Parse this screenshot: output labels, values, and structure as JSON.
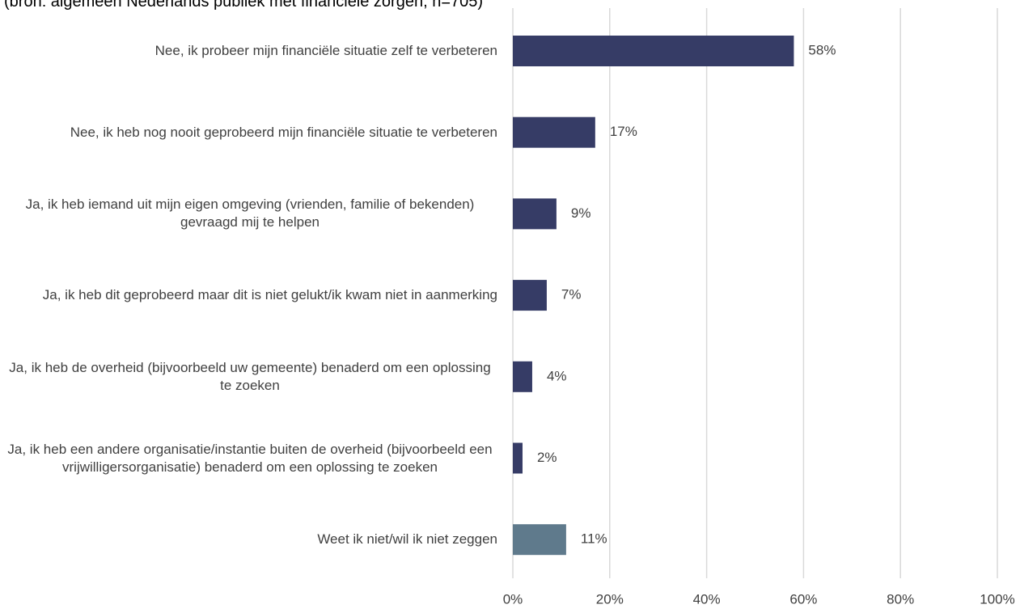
{
  "chart_data": {
    "type": "bar",
    "orientation": "horizontal",
    "subtitle": "(bron: algemeen Nederlands publiek met financiële zorgen, n=705)",
    "categories": [
      "Nee, ik probeer mijn financiële situatie zelf te verbeteren",
      "Nee, ik heb nog nooit geprobeerd mijn financiële situatie te verbeteren",
      "Ja, ik heb iemand uit mijn eigen omgeving (vrienden, familie of bekenden) gevraagd mij te helpen",
      "Ja, ik heb dit geprobeerd maar dit is niet gelukt/ik kwam niet in aanmerking",
      "Ja, ik heb de overheid (bijvoorbeeld uw gemeente) benaderd om een oplossing te zoeken",
      "Ja, ik heb een andere organisatie/instantie buiten de overheid (bijvoorbeeld een vrijwilligersorganisatie) benaderd om een oplossing te zoeken",
      "Weet ik niet/wil ik niet zeggen"
    ],
    "values": [
      58,
      17,
      9,
      7,
      4,
      2,
      11
    ],
    "value_labels": [
      "58%",
      "17%",
      "9%",
      "7%",
      "4%",
      "2%",
      "11%"
    ],
    "colors": [
      "#363c66",
      "#363c66",
      "#363c66",
      "#363c66",
      "#363c66",
      "#363c66",
      "#5f7a8c"
    ],
    "xlim": [
      0,
      100
    ],
    "xticks": [
      {
        "value": 0,
        "label": "0%"
      },
      {
        "value": 20,
        "label": "20%"
      },
      {
        "value": 40,
        "label": "40%"
      },
      {
        "value": 60,
        "label": "60%"
      },
      {
        "value": 80,
        "label": "80%"
      },
      {
        "value": 100,
        "label": "100%"
      }
    ],
    "grid": true
  }
}
